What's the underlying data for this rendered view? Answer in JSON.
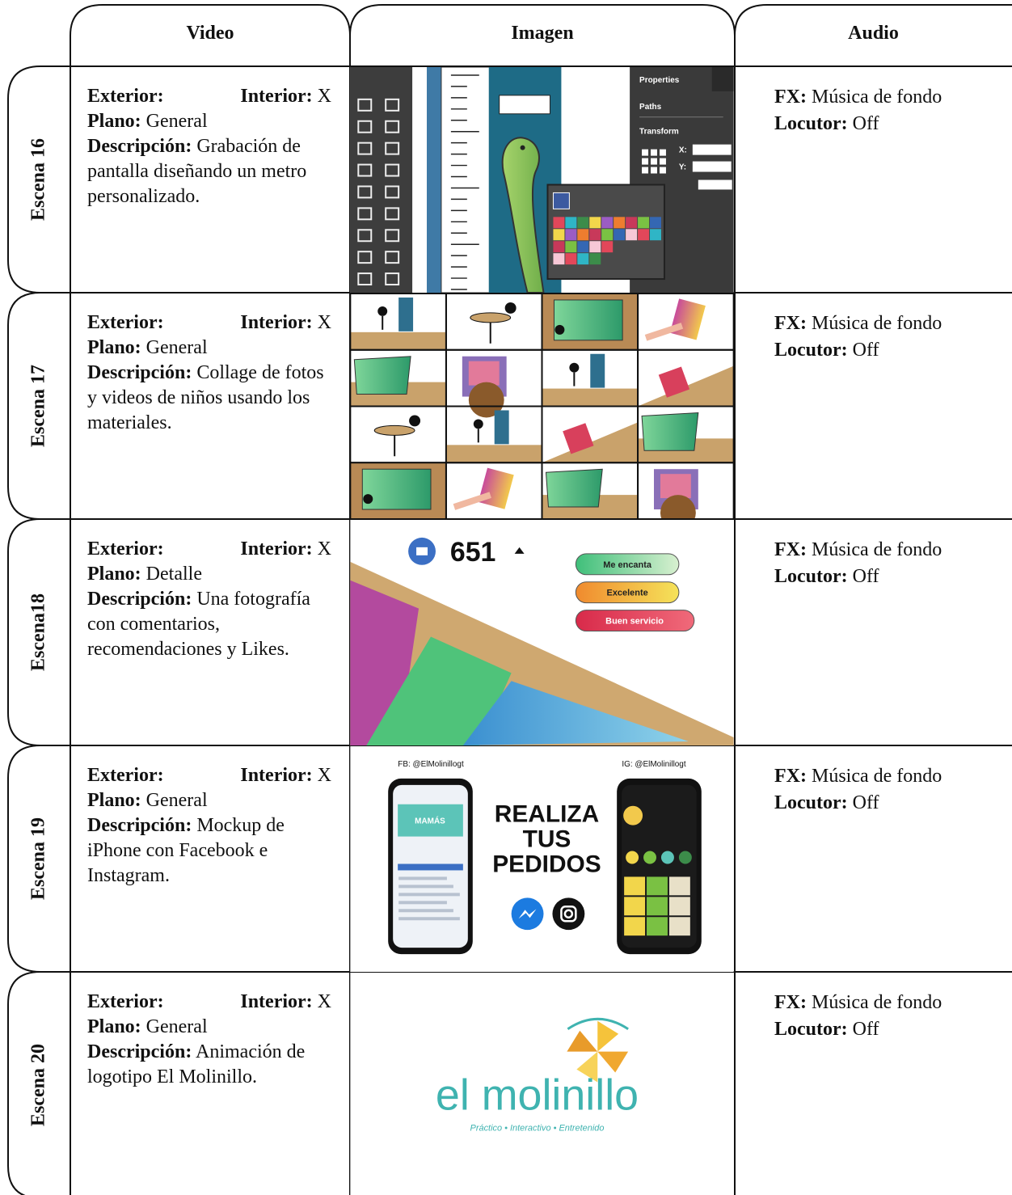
{
  "header": {
    "columns": [
      "Video",
      "Imagen",
      "Audio"
    ]
  },
  "rows": [
    {
      "scene": "Escena 16",
      "video": {
        "exterior_label": "Exterior:",
        "interior_label": "Interior:",
        "interior_value": "X",
        "plano_label": "Plano:",
        "plano_value": "General",
        "descripcion_label": "Descripción:",
        "descripcion_value": "Grabación de pantalla diseñando un metro personalizado."
      },
      "image": {
        "texts": [
          "Properties",
          "Paths",
          "Transform",
          "X:",
          "Y:"
        ]
      },
      "audio": {
        "fx_label": "FX:",
        "fx_value": "Música de fondo",
        "locutor_label": "Locutor:",
        "locutor_value": "Off"
      }
    },
    {
      "scene": "Escena 17",
      "video": {
        "exterior_label": "Exterior:",
        "interior_label": "Interior:",
        "interior_value": "X",
        "plano_label": "Plano:",
        "plano_value": "General",
        "descripcion_label": "Descripción:",
        "descripcion_value": "Collage de fotos y videos de niños usando los materiales."
      },
      "image": {
        "texts": []
      },
      "audio": {
        "fx_label": "FX:",
        "fx_value": "Música de fondo",
        "locutor_label": "Locutor:",
        "locutor_value": "Off"
      }
    },
    {
      "scene": "Escena18",
      "video": {
        "exterior_label": "Exterior:",
        "interior_label": "Interior:",
        "interior_value": "X",
        "plano_label": "Plano:",
        "plano_value": "Detalle",
        "descripcion_label": "Descripción:",
        "descripcion_value": "Una fotografía con comentarios, recomendaciones y Likes."
      },
      "image": {
        "texts": [
          "651",
          "Me encanta",
          "Excelente",
          "Buen servicio"
        ]
      },
      "audio": {
        "fx_label": "FX:",
        "fx_value": "Música de fondo",
        "locutor_label": "Locutor:",
        "locutor_value": "Off"
      }
    },
    {
      "scene": "Escena 19",
      "video": {
        "exterior_label": "Exterior:",
        "interior_label": "Interior:",
        "interior_value": "X",
        "plano_label": "Plano:",
        "plano_value": "General",
        "descripcion_label": "Descripción:",
        "descripcion_value": "Mockup de iPhone con Facebook e Instagram."
      },
      "image": {
        "texts": [
          "FB: @ElMolinillogt",
          "IG: @ElMolinillogt",
          "REALIZA",
          "TUS",
          "PEDIDOS",
          "MAMÁS"
        ]
      },
      "audio": {
        "fx_label": "FX:",
        "fx_value": "Música de fondo",
        "locutor_label": "Locutor:",
        "locutor_value": "Off"
      }
    },
    {
      "scene": "Escena 20",
      "video": {
        "exterior_label": "Exterior:",
        "interior_label": "Interior:",
        "interior_value": "X",
        "plano_label": "Plano:",
        "plano_value": "General",
        "descripcion_label": "Descripción:",
        "descripcion_value": "Animación de logotipo El Molinillo."
      },
      "image": {
        "texts": [
          "el molinillo",
          "Práctico  •  Interactivo  •  Entretenido"
        ]
      },
      "audio": {
        "fx_label": "FX:",
        "fx_value": "Música de fondo",
        "locutor_label": "Locutor:",
        "locutor_value": "Off"
      }
    }
  ]
}
